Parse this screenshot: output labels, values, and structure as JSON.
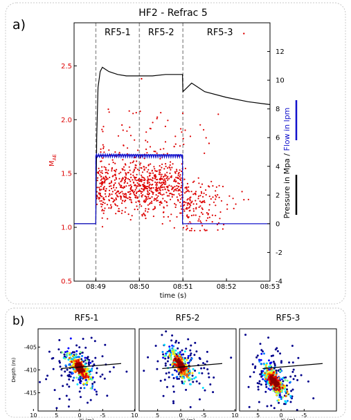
{
  "panel_a": {
    "label": "a)",
    "chart_data": {
      "type": "scatter+line",
      "title": "HF2 - Refrac 5",
      "xlabel": "time (s)",
      "ylabel_left": "M",
      "ylabel_left_sub": "AE",
      "ylabel_right_part1": "Pressure in Mpa",
      "ylabel_right_sep": " / ",
      "ylabel_right_part2": "Flow in lpm",
      "x_ticks": [
        "08:49",
        "08:50",
        "08:51",
        "08:52",
        "08:53"
      ],
      "x_range_minutes": [
        -0.5,
        4.0
      ],
      "y_left_ticks": [
        "0.5",
        "1.0",
        "1.5",
        "2.0",
        "2.5"
      ],
      "y_left_range": [
        0.5,
        2.9
      ],
      "y_right_ticks": [
        "-4",
        "-2",
        "0",
        "2",
        "4",
        "6",
        "8",
        "10",
        "12"
      ],
      "y_right_range": [
        -4,
        14
      ],
      "stage_labels": [
        "RF5-1",
        "RF5-2",
        "RF5-3"
      ],
      "stage_boundaries_minutes": [
        0.0,
        1.0,
        2.0
      ],
      "series": [
        {
          "name": "Pressure",
          "color": "#000000",
          "x": [
            -0.5,
            0.0,
            0.02,
            0.05,
            0.1,
            0.15,
            0.2,
            0.3,
            0.5,
            0.7,
            1.0,
            1.3,
            1.6,
            1.99,
            2.0,
            2.2,
            2.5,
            3.0,
            3.5,
            4.0
          ],
          "y": [
            0.0,
            0.0,
            6.0,
            9.5,
            10.6,
            10.9,
            10.8,
            10.6,
            10.4,
            10.3,
            10.3,
            10.3,
            10.4,
            10.4,
            9.2,
            9.8,
            9.2,
            8.8,
            8.5,
            8.3
          ]
        },
        {
          "name": "Flow",
          "color": "#1010cc",
          "x": [
            -0.5,
            0.0,
            0.0,
            0.5,
            1.0,
            1.5,
            1.99,
            1.99,
            4.0
          ],
          "y": [
            0.0,
            0.0,
            4.7,
            4.8,
            4.8,
            4.8,
            4.8,
            0.0,
            0.0
          ]
        }
      ],
      "events": {
        "name": "AE magnitude",
        "color": "#dd0000",
        "count": 950
      }
    }
  },
  "panel_b": {
    "label": "b)",
    "chart_data": [
      {
        "type": "scatter",
        "title": "RF5-1",
        "xlabel": "X' (m)",
        "ylabel": "Depth (m)",
        "x_ticks": [
          "10",
          "5",
          "0",
          "-5"
        ],
        "y_ticks": [
          "-405",
          "-410",
          "-415"
        ],
        "cluster_center": [
          0.0,
          -409.5
        ]
      },
      {
        "type": "scatter",
        "title": "RF5-2",
        "xlabel": "X' (m)",
        "ylabel": "",
        "x_ticks": [
          "10",
          "5",
          "0",
          "-5"
        ],
        "y_ticks": [],
        "cluster_center": [
          0.0,
          -409.0
        ]
      },
      {
        "type": "scatter",
        "title": "RF5-3",
        "xlabel": "X' (m)",
        "ylabel": "",
        "x_ticks": [
          "10",
          "5",
          "0",
          "-5"
        ],
        "y_ticks": [],
        "cluster_center": [
          1.5,
          -412.5
        ]
      }
    ]
  }
}
